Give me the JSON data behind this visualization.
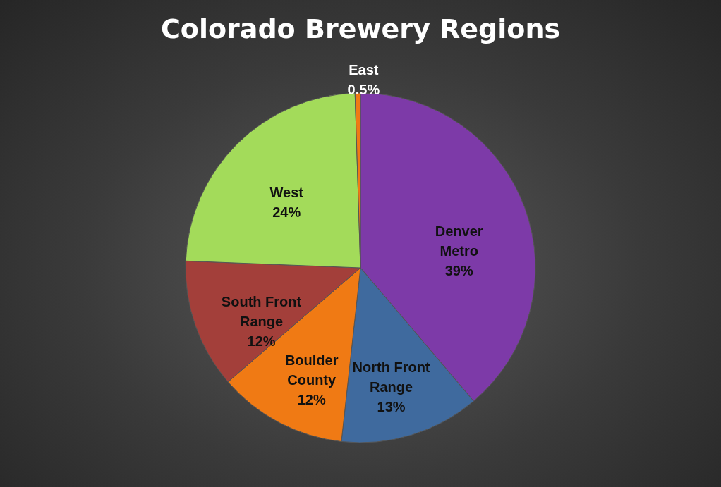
{
  "chart_data": {
    "type": "pie",
    "title": "Colorado Brewery Regions",
    "categories": [
      "Denver Metro",
      "North Front Range",
      "Boulder County",
      "South Front Range",
      "West",
      "East"
    ],
    "values": [
      39,
      13,
      12,
      12,
      24,
      0.5
    ],
    "value_labels": [
      "39%",
      "13%",
      "12%",
      "12%",
      "24%",
      "0.5%"
    ],
    "colors": [
      "#7d3aa8",
      "#3f6a9e",
      "#f07a14",
      "#a33f3a",
      "#a3db5a",
      "#f07a14"
    ],
    "legend": false
  }
}
